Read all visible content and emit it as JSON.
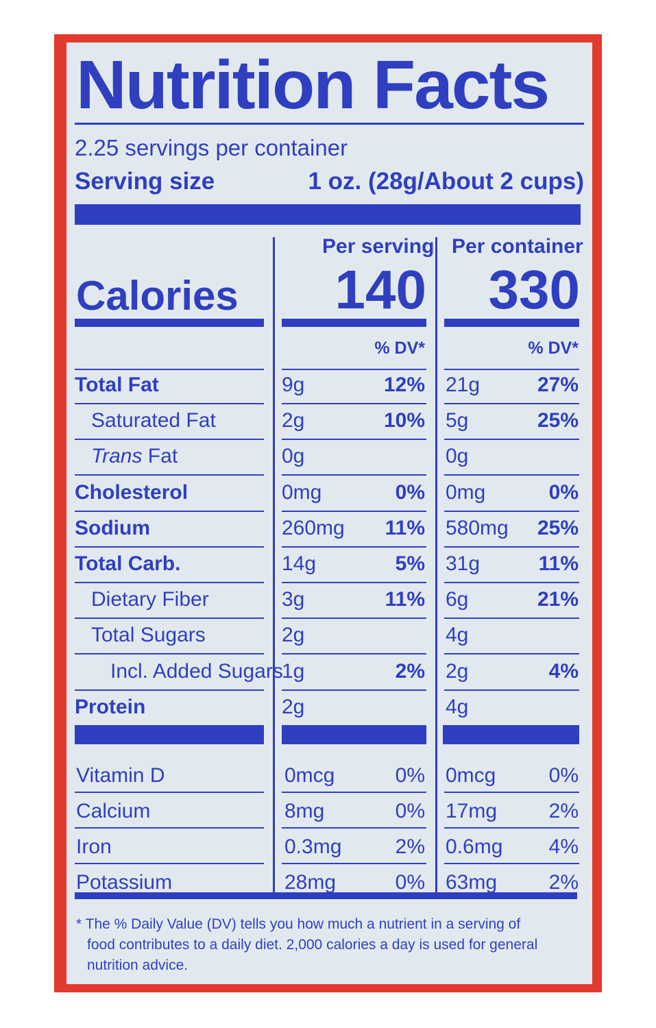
{
  "title": "Nutrition Facts",
  "servings_per_container": "2.25 servings per container",
  "serving_size_label": "Serving size",
  "serving_size_value": "1 oz. (28g/About 2 cups)",
  "col_per_serving": "Per serving",
  "col_per_container": "Per container",
  "calories_label": "Calories",
  "calories_per_serving": "140",
  "calories_per_container": "330",
  "dv_header": "% DV*",
  "nutrients": [
    {
      "name": "Total Fat",
      "s_amt": "9g",
      "s_dv": "12%",
      "c_amt": "21g",
      "c_dv": "27%"
    },
    {
      "name": "Saturated Fat",
      "s_amt": "2g",
      "s_dv": "10%",
      "c_amt": "5g",
      "c_dv": "25%"
    },
    {
      "name_italic": "Trans",
      "name_rest": " Fat",
      "s_amt": "0g",
      "s_dv": "",
      "c_amt": "0g",
      "c_dv": ""
    },
    {
      "name": "Cholesterol",
      "s_amt": "0mg",
      "s_dv": "0%",
      "c_amt": "0mg",
      "c_dv": "0%"
    },
    {
      "name": "Sodium",
      "s_amt": "260mg",
      "s_dv": "11%",
      "c_amt": "580mg",
      "c_dv": "25%"
    },
    {
      "name": "Total Carb.",
      "s_amt": "14g",
      "s_dv": "5%",
      "c_amt": "31g",
      "c_dv": "11%"
    },
    {
      "name": "Dietary Fiber",
      "s_amt": "3g",
      "s_dv": "11%",
      "c_amt": "6g",
      "c_dv": "21%"
    },
    {
      "name": "Total Sugars",
      "s_amt": "2g",
      "s_dv": "",
      "c_amt": "4g",
      "c_dv": ""
    },
    {
      "name": "Incl. Added Sugars",
      "s_amt": "1g",
      "s_dv": "2%",
      "c_amt": "2g",
      "c_dv": "4%"
    },
    {
      "name": "Protein",
      "s_amt": "2g",
      "s_dv": "",
      "c_amt": "4g",
      "c_dv": ""
    }
  ],
  "vitamins": [
    {
      "name": "Vitamin D",
      "s_amt": "0mcg",
      "s_dv": "0%",
      "c_amt": "0mcg",
      "c_dv": "0%"
    },
    {
      "name": "Calcium",
      "s_amt": "8mg",
      "s_dv": "0%",
      "c_amt": "17mg",
      "c_dv": "2%"
    },
    {
      "name": "Iron",
      "s_amt": "0.3mg",
      "s_dv": "2%",
      "c_amt": "0.6mg",
      "c_dv": "4%"
    },
    {
      "name": "Potassium",
      "s_amt": "28mg",
      "s_dv": "0%",
      "c_amt": "63mg",
      "c_dv": "2%"
    }
  ],
  "footnote_lines": [
    "* The % Daily Value (DV) tells you how much a nutrient in a serving of",
    "food contributes to a daily diet. 2,000 calories a day is used for general",
    "nutrition advice."
  ],
  "colors": {
    "ink": "#2f3fc0",
    "border": "#e23a2f",
    "panel": "#e2e9ee"
  }
}
